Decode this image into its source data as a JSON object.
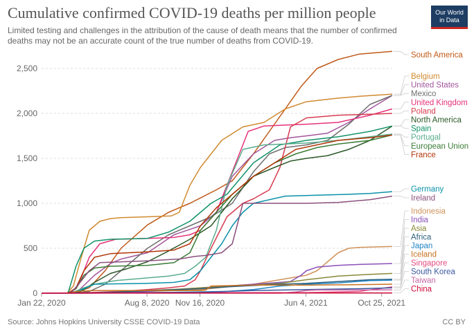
{
  "header": {
    "title": "Cumulative confirmed COVID-19 deaths per million people",
    "subtitle": "Limited testing and challenges in the attribution of the cause of death means that the number of confirmed deaths may not be an accurate count of the true number of deaths from COVID-19.",
    "logo_line1": "Our World",
    "logo_line2": "in Data"
  },
  "footer": {
    "source": "Source: Johns Hopkins University CSSE COVID-19 Data",
    "license": "CC BY"
  },
  "chart_data": {
    "type": "line",
    "title": "Cumulative confirmed COVID-19 deaths per million people",
    "xlabel": "",
    "ylabel": "",
    "ylim": [
      0,
      2700
    ],
    "xlim": [
      0,
      662
    ],
    "yticks": [
      0,
      500,
      1000,
      1500,
      2000,
      2500
    ],
    "ytick_labels": [
      "0",
      "500",
      "1,000",
      "1,500",
      "2,000",
      "2,500"
    ],
    "xticks": [
      0,
      199,
      299,
      499,
      642
    ],
    "xtick_labels": [
      "Jan 22, 2020",
      "Aug 8, 2020",
      "Nov 16, 2020",
      "Jun 4, 2021",
      "Oct 25, 2021"
    ],
    "x_unit": "days since Jan 22, 2020",
    "grid": "horizontal dashed",
    "legend": "right, labels at line ends",
    "series": [
      {
        "name": "South America",
        "color": "#c05917",
        "x": [
          0,
          40,
          60,
          90,
          120,
          150,
          200,
          240,
          280,
          300,
          330,
          360,
          400,
          430,
          460,
          490,
          520,
          560,
          600,
          662
        ],
        "y": [
          0,
          0,
          5,
          60,
          250,
          500,
          760,
          900,
          1000,
          1060,
          1150,
          1250,
          1550,
          1800,
          2050,
          2300,
          2500,
          2600,
          2660,
          2690
        ]
      },
      {
        "name": "Belgium",
        "color": "#d08a30",
        "x": [
          0,
          48,
          60,
          75,
          90,
          110,
          130,
          150,
          200,
          245,
          260,
          280,
          300,
          340,
          380,
          420,
          460,
          500,
          560,
          600,
          662
        ],
        "y": [
          0,
          0,
          80,
          400,
          700,
          800,
          830,
          840,
          850,
          860,
          900,
          1200,
          1400,
          1700,
          1850,
          1900,
          2050,
          2130,
          2170,
          2190,
          2215
        ]
      },
      {
        "name": "United States",
        "color": "#a2559c",
        "x": [
          0,
          50,
          70,
          100,
          130,
          150,
          200,
          250,
          300,
          330,
          360,
          400,
          440,
          470,
          500,
          540,
          580,
          620,
          662
        ],
        "y": [
          0,
          0,
          30,
          200,
          330,
          380,
          450,
          650,
          750,
          900,
          1300,
          1550,
          1700,
          1730,
          1750,
          1780,
          1900,
          2050,
          2200
        ]
      },
      {
        "name": "Mexico",
        "color": "#6d6d6d",
        "x": [
          0,
          65,
          90,
          120,
          160,
          200,
          240,
          280,
          320,
          360,
          400,
          430,
          460,
          500,
          540,
          580,
          620,
          662
        ],
        "y": [
          0,
          0,
          20,
          100,
          300,
          500,
          650,
          750,
          850,
          1000,
          1350,
          1550,
          1620,
          1650,
          1700,
          1880,
          2100,
          2200
        ]
      },
      {
        "name": "United Kingdom",
        "color": "#e5317a",
        "x": [
          0,
          55,
          70,
          90,
          110,
          140,
          200,
          250,
          280,
          300,
          330,
          350,
          370,
          390,
          420,
          460,
          500,
          560,
          620,
          662
        ],
        "y": [
          0,
          0,
          100,
          400,
          550,
          600,
          610,
          620,
          650,
          700,
          900,
          1200,
          1500,
          1800,
          1860,
          1870,
          1880,
          1900,
          1980,
          2050
        ]
      },
      {
        "name": "Poland",
        "color": "#d73c50",
        "x": [
          0,
          60,
          100,
          150,
          200,
          240,
          270,
          290,
          300,
          320,
          350,
          380,
          400,
          430,
          450,
          470,
          500,
          560,
          620,
          662
        ],
        "y": [
          0,
          0,
          10,
          20,
          40,
          60,
          80,
          150,
          250,
          500,
          850,
          1000,
          1050,
          1150,
          1400,
          1850,
          1950,
          1980,
          1990,
          2000
        ]
      },
      {
        "name": "North America",
        "color": "#2b5827",
        "x": [
          0,
          55,
          75,
          100,
          130,
          160,
          200,
          240,
          280,
          320,
          360,
          400,
          440,
          470,
          500,
          540,
          580,
          620,
          662
        ],
        "y": [
          0,
          0,
          20,
          120,
          220,
          270,
          350,
          470,
          600,
          750,
          1050,
          1300,
          1400,
          1470,
          1500,
          1530,
          1600,
          1700,
          1860
        ]
      },
      {
        "name": "Spain",
        "color": "#109268",
        "x": [
          0,
          50,
          65,
          80,
          100,
          130,
          170,
          200,
          240,
          280,
          300,
          320,
          350,
          400,
          450,
          500,
          560,
          620,
          662
        ],
        "y": [
          0,
          0,
          300,
          500,
          580,
          600,
          605,
          610,
          680,
          800,
          900,
          1000,
          1100,
          1450,
          1650,
          1700,
          1740,
          1800,
          1860
        ]
      },
      {
        "name": "Portugal",
        "color": "#58ac8c",
        "x": [
          0,
          55,
          80,
          100,
          140,
          200,
          240,
          270,
          290,
          310,
          330,
          350,
          380,
          420,
          460,
          500,
          560,
          620,
          662
        ],
        "y": [
          0,
          0,
          60,
          100,
          140,
          170,
          190,
          220,
          300,
          400,
          700,
          1200,
          1600,
          1650,
          1660,
          1670,
          1700,
          1740,
          1770
        ]
      },
      {
        "name": "European Union",
        "color": "#3a7c36",
        "x": [
          0,
          50,
          65,
          80,
          100,
          130,
          200,
          250,
          280,
          300,
          330,
          360,
          400,
          440,
          480,
          520,
          560,
          620,
          662
        ],
        "y": [
          0,
          0,
          50,
          200,
          280,
          300,
          310,
          340,
          450,
          700,
          900,
          1100,
          1300,
          1450,
          1550,
          1620,
          1660,
          1700,
          1760
        ]
      },
      {
        "name": "France",
        "color": "#b13507",
        "x": [
          0,
          50,
          65,
          80,
          100,
          130,
          200,
          250,
          280,
          300,
          330,
          360,
          400,
          440,
          480,
          520,
          560,
          620,
          662
        ],
        "y": [
          0,
          0,
          60,
          250,
          400,
          440,
          460,
          480,
          550,
          750,
          950,
          1100,
          1300,
          1450,
          1600,
          1650,
          1700,
          1730,
          1760
        ]
      },
      {
        "name": "Germany",
        "color": "#0a91a8",
        "x": [
          0,
          60,
          80,
          100,
          200,
          250,
          280,
          300,
          320,
          340,
          360,
          380,
          400,
          460,
          520,
          580,
          620,
          662
        ],
        "y": [
          0,
          0,
          50,
          100,
          110,
          120,
          150,
          250,
          400,
          550,
          750,
          900,
          1000,
          1080,
          1090,
          1100,
          1110,
          1130
        ]
      },
      {
        "name": "Ireland",
        "color": "#8a4f7d",
        "x": [
          0,
          55,
          70,
          90,
          110,
          200,
          260,
          290,
          310,
          340,
          360,
          380,
          420,
          500,
          560,
          620,
          662
        ],
        "y": [
          0,
          0,
          100,
          250,
          340,
          360,
          380,
          410,
          420,
          450,
          550,
          1000,
          1000,
          1000,
          1010,
          1040,
          1080
        ]
      },
      {
        "name": "Indonesia",
        "color": "#d0925a",
        "x": [
          0,
          90,
          150,
          200,
          300,
          400,
          450,
          500,
          520,
          540,
          560,
          580,
          600,
          662
        ],
        "y": [
          0,
          0,
          10,
          20,
          40,
          100,
          150,
          200,
          250,
          350,
          450,
          500,
          510,
          520
        ]
      },
      {
        "name": "India",
        "color": "#8a4fb8",
        "x": [
          0,
          90,
          150,
          200,
          300,
          400,
          450,
          470,
          490,
          500,
          520,
          560,
          600,
          662
        ],
        "y": [
          0,
          0,
          5,
          20,
          60,
          100,
          120,
          130,
          200,
          250,
          290,
          310,
          320,
          330
        ]
      },
      {
        "name": "Asia",
        "color": "#888837",
        "x": [
          0,
          60,
          100,
          150,
          200,
          260,
          300,
          350,
          400,
          450,
          500,
          560,
          620,
          662
        ],
        "y": [
          0,
          0,
          5,
          15,
          30,
          45,
          60,
          75,
          90,
          110,
          150,
          190,
          210,
          220
        ]
      },
      {
        "name": "Africa",
        "color": "#2c5f7d",
        "x": [
          0,
          70,
          100,
          150,
          200,
          260,
          300,
          350,
          400,
          450,
          500,
          560,
          620,
          662
        ],
        "y": [
          0,
          0,
          5,
          15,
          30,
          40,
          50,
          70,
          85,
          100,
          110,
          130,
          150,
          155
        ]
      },
      {
        "name": "Japan",
        "color": "#1f84c4",
        "x": [
          0,
          70,
          150,
          250,
          300,
          350,
          400,
          450,
          500,
          560,
          620,
          662
        ],
        "y": [
          0,
          0,
          5,
          10,
          15,
          20,
          40,
          80,
          100,
          115,
          140,
          145
        ]
      },
      {
        "name": "Iceland",
        "color": "#c9711e",
        "x": [
          0,
          55,
          65,
          80,
          100,
          300,
          310,
          320,
          400,
          500,
          600,
          662
        ],
        "y": [
          0,
          0,
          20,
          25,
          30,
          30,
          35,
          80,
          90,
          90,
          95,
          100
        ]
      },
      {
        "name": "Singapore",
        "color": "#e64a7f",
        "x": [
          0,
          70,
          100,
          200,
          300,
          500,
          600,
          662
        ],
        "y": [
          0,
          0,
          4,
          5,
          5,
          6,
          20,
          70
        ]
      },
      {
        "name": "South Korea",
        "color": "#3a57a0",
        "x": [
          0,
          40,
          60,
          100,
          200,
          300,
          400,
          500,
          600,
          662
        ],
        "y": [
          0,
          0,
          2,
          5,
          6,
          10,
          30,
          40,
          50,
          60
        ]
      },
      {
        "name": "Taiwan",
        "color": "#c86aa6",
        "x": [
          0,
          450,
          480,
          500,
          520,
          600,
          662
        ],
        "y": [
          0,
          0,
          15,
          30,
          35,
          36,
          36
        ]
      },
      {
        "name": "China",
        "color": "#cf0a3a",
        "x": [
          0,
          10,
          30,
          60,
          662
        ],
        "y": [
          0,
          0.5,
          2,
          3,
          3
        ]
      }
    ]
  }
}
